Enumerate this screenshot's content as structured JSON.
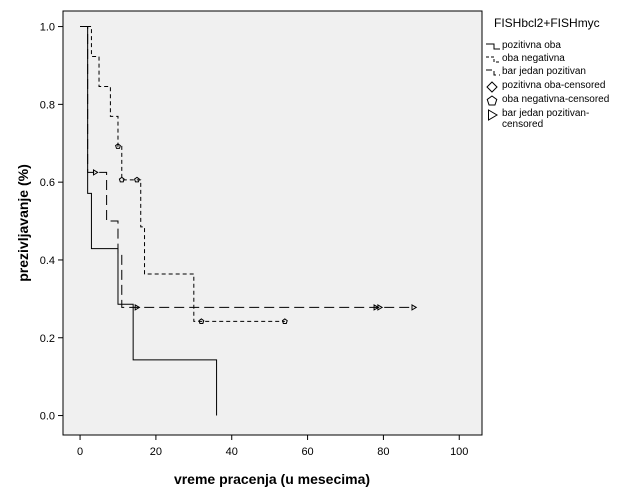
{
  "chart_data": {
    "type": "line",
    "xlabel": "vreme pracenja (u mesecima)",
    "ylabel": "prezivljavanje (%)",
    "xlim": [
      -4.5,
      106
    ],
    "ylim": [
      -0.05,
      1.04
    ],
    "x_ticks": [
      {
        "value": 0,
        "label": "0"
      },
      {
        "value": 20,
        "label": "20"
      },
      {
        "value": 40,
        "label": "40"
      },
      {
        "value": 60,
        "label": "60"
      },
      {
        "value": 80,
        "label": "80"
      },
      {
        "value": 100,
        "label": "100"
      }
    ],
    "y_ticks": [
      {
        "value": 0,
        "label": "0.0"
      },
      {
        "value": 0.2,
        "label": "0.2"
      },
      {
        "value": 0.4,
        "label": "0.4"
      },
      {
        "value": 0.6,
        "label": "0.6"
      },
      {
        "value": 0.8,
        "label": "0.8"
      },
      {
        "value": 1.0,
        "label": "1.0"
      }
    ],
    "legend": {
      "title": "FISHbcl2+FISHmyc",
      "placement": "right",
      "entries": [
        {
          "label": "pozitivna oba",
          "symbol": "solid-line"
        },
        {
          "label": "oba negativna",
          "symbol": "short-dash-line"
        },
        {
          "label": "bar jedan pozitivan",
          "symbol": "long-dash-line"
        },
        {
          "label": "pozitivna oba-censored",
          "symbol": "diamond"
        },
        {
          "label": "oba negativna-censored",
          "symbol": "pentagon"
        },
        {
          "label": "bar jedan pozitivan-censored",
          "symbol": "triangle-right"
        }
      ]
    },
    "series": [
      {
        "name": "pozitivna oba",
        "dash": "solid",
        "steps": [
          [
            0,
            1.0
          ],
          [
            2,
            0.571
          ],
          [
            3,
            0.429
          ],
          [
            10,
            0.286
          ],
          [
            14,
            0.143
          ],
          [
            36,
            0.0
          ]
        ],
        "end_x": 36,
        "censored": []
      },
      {
        "name": "oba negativna",
        "dash": "short",
        "steps": [
          [
            0,
            1.0
          ],
          [
            3,
            0.923
          ],
          [
            5,
            0.846
          ],
          [
            8,
            0.769
          ],
          [
            10,
            0.692
          ],
          [
            11,
            0.606
          ],
          [
            16,
            0.485
          ],
          [
            17,
            0.364
          ],
          [
            30,
            0.242
          ]
        ],
        "end_x": 54,
        "censored": [
          [
            10,
            0.692
          ],
          [
            11,
            0.606
          ],
          [
            15,
            0.606
          ],
          [
            32,
            0.242
          ],
          [
            54,
            0.242
          ]
        ]
      },
      {
        "name": "bar jedan pozitivan",
        "dash": "long",
        "steps": [
          [
            0,
            1.0
          ],
          [
            2,
            0.625
          ],
          [
            7,
            0.5
          ],
          [
            10,
            0.417
          ],
          [
            11,
            0.278
          ]
        ],
        "end_x": 88,
        "censored": [
          [
            4,
            0.625
          ],
          [
            15,
            0.278
          ],
          [
            78,
            0.278
          ],
          [
            79,
            0.278
          ],
          [
            88,
            0.278
          ]
        ]
      }
    ]
  }
}
